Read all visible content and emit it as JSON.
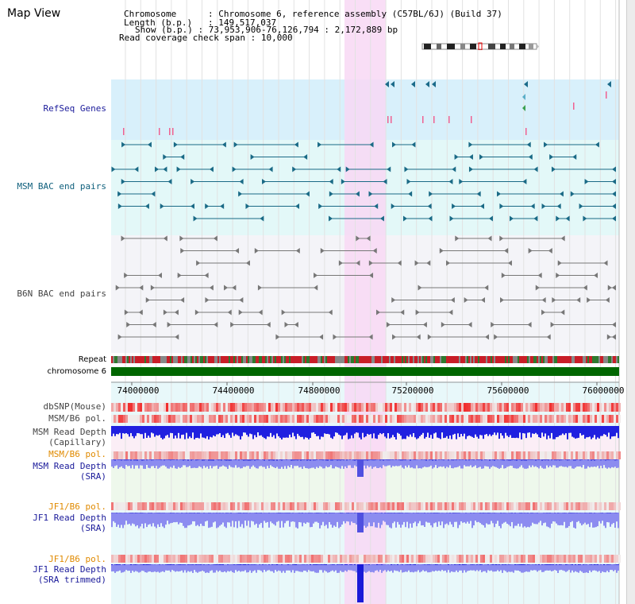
{
  "view_title": "Map View",
  "info": {
    "chromosome_label": "Chromosome",
    "chromosome_value": "Chromosome 6, reference assembly (C57BL/6J) (Build 37)",
    "length_label": "Length (b.p.)",
    "length_value": "149,517,037",
    "show_label": "Show (b.p.)",
    "show_value": "73,953,906-76,126,794 : 2,172,889 bp",
    "coverage_label": "Read coverage check span",
    "coverage_value": "10,000"
  },
  "track_labels": {
    "refseq": "RefSeq Genes",
    "msm_bac": "MSM BAC end pairs",
    "b6n_bac": "B6N BAC end pairs",
    "repeat": "Repeat",
    "chromosome": "chromosome 6",
    "dbsnp": "dbSNP(Mouse)",
    "msm_pol1": "MSM/B6 pol.",
    "msm_depth_cap_1": "MSM Read Depth",
    "msm_depth_cap_2": "(Capillary)",
    "msm_pol2": "MSM/B6 pol.",
    "msm_depth_sra_1": "MSM Read Depth",
    "msm_depth_sra_2": "(SRA)",
    "jf1_pol1": "JF1/B6 pol.",
    "jf1_depth_sra_1": "JF1 Read Depth",
    "jf1_depth_sra_2": "(SRA)",
    "jf1_pol2": "JF1/B6 pol.",
    "jf1_depth_trim_1": "JF1 Read Depth",
    "jf1_depth_trim_2": "(SRA trimmed)"
  },
  "ruler_ticks": [
    "74000000",
    "74400000",
    "74800000",
    "75200000",
    "75600000",
    "76000000"
  ],
  "colors": {
    "refseq_bg": "#d8f0fb",
    "msm_bac_bg": "#e3f8f8",
    "b6n_bg": "#f4f4f8",
    "highlight": "#f8d8f4",
    "chromosome_bar": "#006600",
    "depth_blue": "#2020e0",
    "depth_light": "#8c8cf0",
    "pol_red": "#e83030"
  }
}
